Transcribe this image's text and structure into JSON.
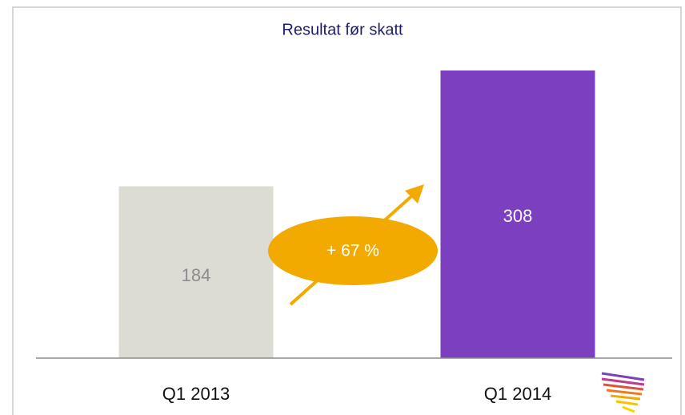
{
  "chart_data": {
    "type": "bar",
    "title": "Resultat før skatt",
    "categories": [
      "Q1 2013",
      "Q1 2014"
    ],
    "values": [
      184,
      308
    ],
    "colors": [
      "#dcdcd5",
      "#7b3fbf"
    ],
    "label_colors": [
      "#8c8c8c",
      "#ffffff"
    ],
    "annotation": "+ 67 %",
    "annotation_color": "#f2a900"
  }
}
